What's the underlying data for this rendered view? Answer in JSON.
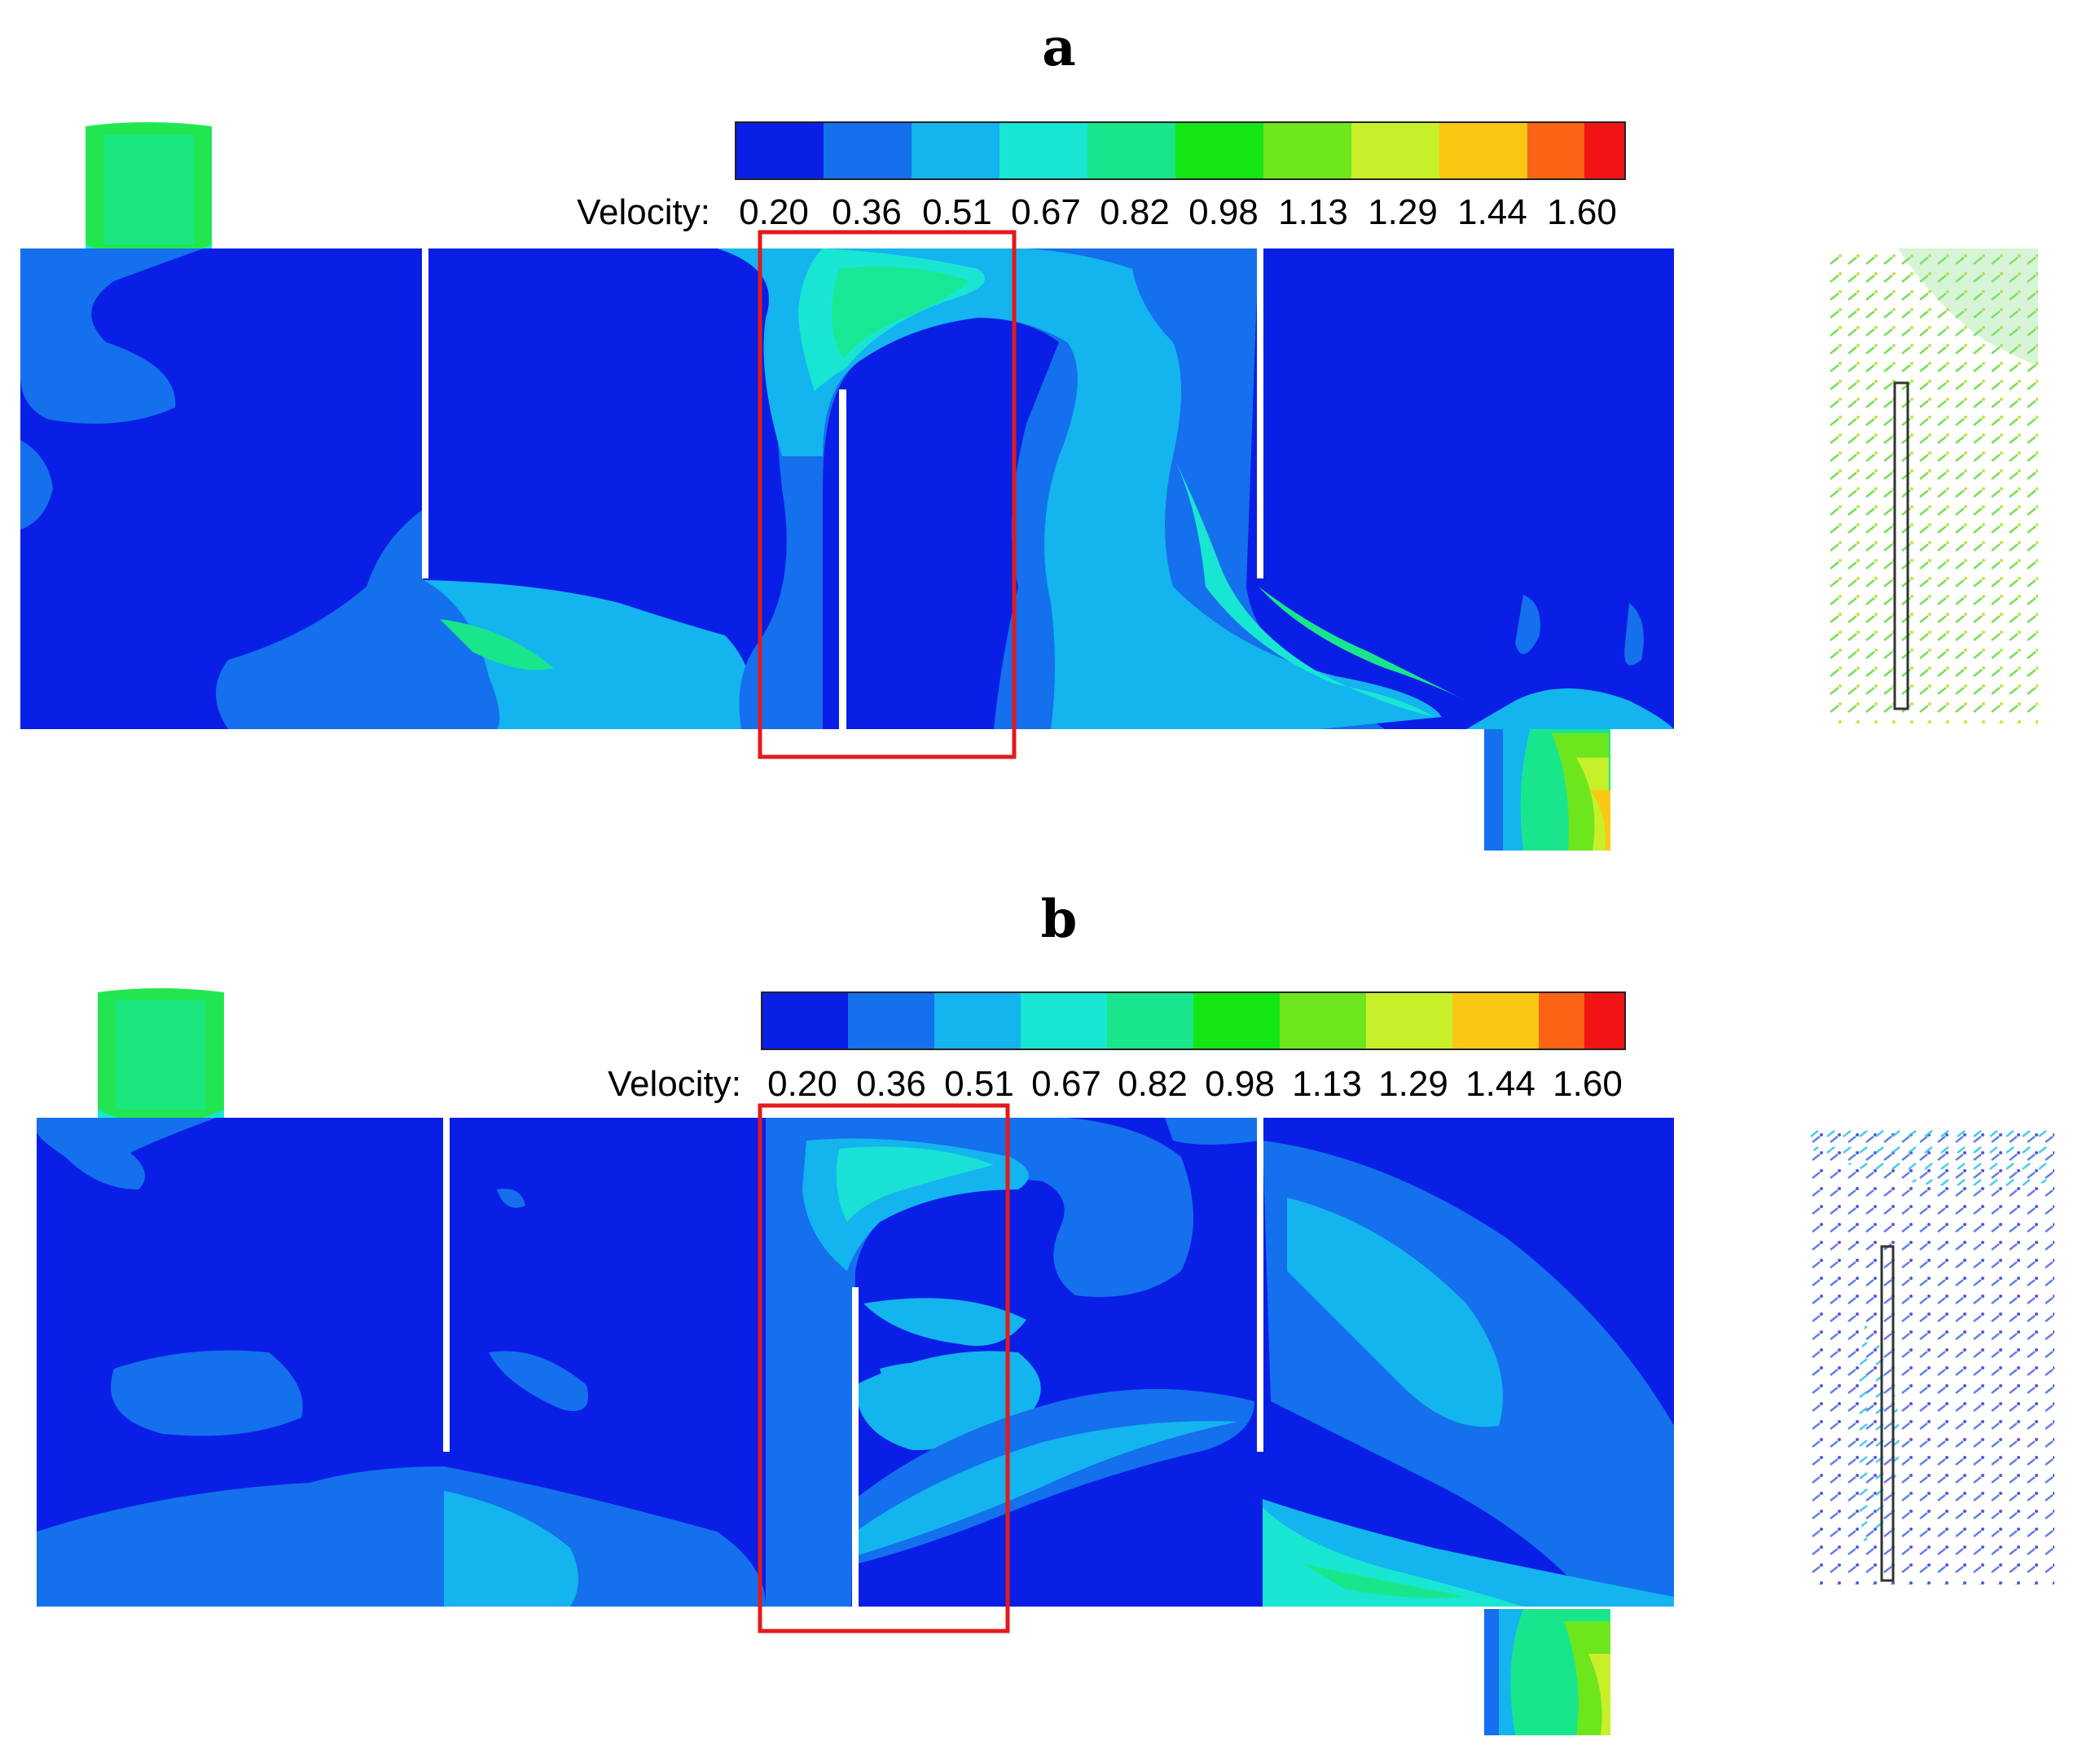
{
  "panels": [
    {
      "label": "a",
      "colorbar_title": "Velocity:",
      "ticks": [
        "0.20",
        "0.36",
        "0.51",
        "0.67",
        "0.82",
        "0.98",
        "1.13",
        "1.29",
        "1.44",
        "1.60"
      ]
    },
    {
      "label": "b",
      "colorbar_title": "Velocity:",
      "ticks": [
        "0.20",
        "0.36",
        "0.51",
        "0.67",
        "0.82",
        "0.98",
        "1.13",
        "1.29",
        "1.44",
        "1.60"
      ]
    }
  ],
  "colors": {
    "scale": [
      "#0a1fe6",
      "#1470ec",
      "#14b4ee",
      "#19e6d2",
      "#19e68c",
      "#14e614",
      "#6ee61e",
      "#c8f028",
      "#fac814",
      "#fa6414",
      "#f01414"
    ],
    "highlight_box": "#e21a1a",
    "baffle": "#ffffff"
  }
}
